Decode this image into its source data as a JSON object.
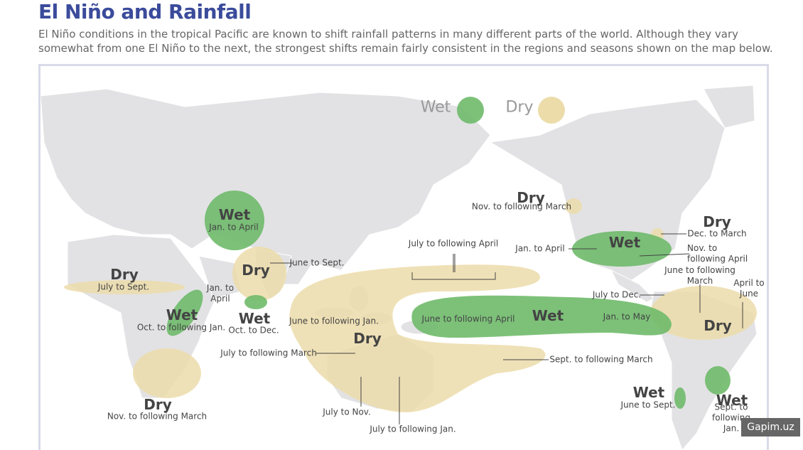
{
  "header": {
    "title": "El Niño and Rainfall",
    "description": "El Niño conditions in the tropical Pacific are known to shift rainfall patterns in many different parts of the world. Although they vary somewhat from one El Niño to the next, the strongest shifts remain fairly consistent in the regions and seasons shown on the map below."
  },
  "legend": [
    {
      "label": "Wet"
    },
    {
      "label": "Dry"
    }
  ],
  "regions": [
    {
      "label": "Wet",
      "seasons": [
        "Jan. to April"
      ]
    },
    {
      "label": "Dry",
      "seasons": [
        "June to Sept."
      ]
    },
    {
      "label": "Dry",
      "seasons": [
        "July to Sept."
      ]
    },
    {
      "label": "Wet",
      "seasons": [
        "Oct. to Dec.",
        "Jan. to April"
      ]
    },
    {
      "label": "Wet",
      "seasons": [
        "Oct. to following Jan."
      ]
    },
    {
      "label": "Dry",
      "seasons": [
        "Nov. to following March"
      ]
    },
    {
      "label": "Dry",
      "seasons": [
        "June to following Jan.",
        "July to following March",
        "July to Nov.",
        "July to following Jan.",
        "July to following April",
        "Sept. to following March"
      ]
    },
    {
      "label": "Wet",
      "seasons": [
        "June to following April",
        "Jan. to May"
      ]
    },
    {
      "label": "Dry",
      "seasons": [
        "Nov. to following March"
      ]
    },
    {
      "label": "Wet",
      "seasons": [
        "Jan. to April",
        "Nov. to following April"
      ]
    },
    {
      "label": "Dry",
      "seasons": [
        "Dec. to March"
      ]
    },
    {
      "label": "Dry",
      "seasons": [
        "June to following March",
        "July to Dec.",
        "April to June"
      ]
    },
    {
      "label": "Wet",
      "seasons": [
        "June to Sept."
      ]
    },
    {
      "label": "Wet",
      "seasons": [
        "Sept. to following Jan."
      ]
    }
  ],
  "watermark": "Gapim.uz"
}
